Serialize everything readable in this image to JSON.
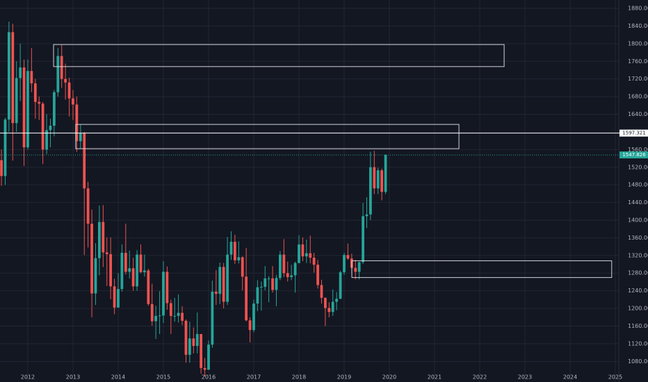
{
  "chart_data": {
    "type": "candlestick",
    "up_color": "#26a69a",
    "down_color": "#ef5350",
    "grid": true,
    "xlim": [
      2011.385,
      2025.077
    ],
    "ylim": [
      1033.3,
      1898.9
    ],
    "xticks": [
      2012,
      2013,
      2014,
      2015,
      2016,
      2017,
      2018,
      2019,
      2020,
      2021,
      2022,
      2023,
      2024,
      2025
    ],
    "yticks": [
      {
        "value": 1080,
        "label": "1080.000"
      },
      {
        "value": 1120,
        "label": "1120.000"
      },
      {
        "value": 1160,
        "label": "1160.000"
      },
      {
        "value": 1200,
        "label": "1200.000"
      },
      {
        "value": 1240,
        "label": "1240.000"
      },
      {
        "value": 1280,
        "label": "1280.000"
      },
      {
        "value": 1320,
        "label": "1320.000"
      },
      {
        "value": 1360,
        "label": "1360.000"
      },
      {
        "value": 1400,
        "label": "1400.000"
      },
      {
        "value": 1440,
        "label": "1440.000"
      },
      {
        "value": 1480,
        "label": "1480.000"
      },
      {
        "value": 1520,
        "label": "1520.000"
      },
      {
        "value": 1560,
        "label": "1560.000"
      },
      {
        "value": 1600,
        "label": "1600.000"
      },
      {
        "value": 1640,
        "label": "1640.000"
      },
      {
        "value": 1680,
        "label": "1680.000"
      },
      {
        "value": 1720,
        "label": "1720.000"
      },
      {
        "value": 1760,
        "label": "1760.000"
      },
      {
        "value": 1800,
        "label": "1800.000"
      },
      {
        "value": 1840,
        "label": "1840.000"
      },
      {
        "value": 1880,
        "label": "1880.000"
      }
    ],
    "x": [
      2011.417,
      2011.5,
      2011.583,
      2011.667,
      2011.75,
      2011.833,
      2011.917,
      2012.0,
      2012.083,
      2012.167,
      2012.25,
      2012.333,
      2012.417,
      2012.5,
      2012.583,
      2012.667,
      2012.75,
      2012.833,
      2012.917,
      2013.0,
      2013.083,
      2013.167,
      2013.25,
      2013.333,
      2013.417,
      2013.5,
      2013.583,
      2013.667,
      2013.75,
      2013.833,
      2013.917,
      2014.0,
      2014.083,
      2014.167,
      2014.25,
      2014.333,
      2014.417,
      2014.5,
      2014.583,
      2014.667,
      2014.75,
      2014.833,
      2014.917,
      2015.0,
      2015.083,
      2015.167,
      2015.25,
      2015.333,
      2015.417,
      2015.5,
      2015.583,
      2015.667,
      2015.75,
      2015.833,
      2015.917,
      2016.0,
      2016.083,
      2016.167,
      2016.25,
      2016.333,
      2016.417,
      2016.5,
      2016.583,
      2016.667,
      2016.75,
      2016.833,
      2016.917,
      2017.0,
      2017.083,
      2017.167,
      2017.25,
      2017.333,
      2017.417,
      2017.5,
      2017.583,
      2017.667,
      2017.75,
      2017.833,
      2017.917,
      2018.0,
      2018.083,
      2018.167,
      2018.25,
      2018.333,
      2018.417,
      2018.5,
      2018.583,
      2018.667,
      2018.75,
      2018.833,
      2018.917,
      2019.0,
      2019.083,
      2019.167,
      2019.25,
      2019.333,
      2019.417,
      2019.5,
      2019.583,
      2019.667,
      2019.75,
      2019.833,
      2019.917
    ],
    "open": [
      1536,
      1500,
      1628,
      1826,
      1620,
      1722,
      1746,
      1565,
      1738,
      1710,
      1668,
      1664,
      1560,
      1604,
      1614,
      1690,
      1772,
      1720,
      1712,
      1676,
      1662,
      1579,
      1597,
      1472,
      1392,
      1234,
      1314,
      1396,
      1327,
      1323,
      1250,
      1202,
      1244,
      1326,
      1283,
      1291,
      1250,
      1322,
      1282,
      1286,
      1210,
      1171,
      1183,
      1184,
      1283,
      1212,
      1183,
      1183,
      1190,
      1172,
      1095,
      1132,
      1115,
      1142,
      1065,
      1061,
      1118,
      1238,
      1233,
      1294,
      1215,
      1322,
      1351,
      1309,
      1316,
      1272,
      1173,
      1151,
      1211,
      1248,
      1249,
      1268,
      1268,
      1242,
      1269,
      1322,
      1280,
      1271,
      1275,
      1303,
      1345,
      1318,
      1325,
      1315,
      1299,
      1253,
      1224,
      1201,
      1192,
      1215,
      1222,
      1282,
      1321,
      1313,
      1292,
      1283,
      1305,
      1409,
      1413,
      1520,
      1472,
      1513,
      1464
    ],
    "high": [
      1560,
      1632,
      1850,
      1845,
      1760,
      1800,
      1764,
      1764,
      1790,
      1720,
      1680,
      1668,
      1640,
      1630,
      1695,
      1790,
      1797,
      1755,
      1723,
      1695,
      1680,
      1616,
      1600,
      1487,
      1424,
      1348,
      1433,
      1434,
      1361,
      1361,
      1267,
      1280,
      1345,
      1392,
      1331,
      1315,
      1332,
      1345,
      1322,
      1290,
      1256,
      1206,
      1239,
      1307,
      1295,
      1220,
      1224,
      1232,
      1205,
      1175,
      1170,
      1157,
      1191,
      1142,
      1088,
      1127,
      1263,
      1287,
      1304,
      1303,
      1362,
      1375,
      1367,
      1352,
      1318,
      1337,
      1180,
      1220,
      1264,
      1261,
      1296,
      1273,
      1296,
      1276,
      1330,
      1357,
      1306,
      1299,
      1306,
      1366,
      1361,
      1356,
      1365,
      1326,
      1310,
      1265,
      1225,
      1214,
      1243,
      1237,
      1285,
      1326,
      1347,
      1324,
      1310,
      1306,
      1439,
      1452,
      1555,
      1557,
      1519,
      1517,
      1549
    ],
    "low": [
      1478,
      1480,
      1600,
      1535,
      1600,
      1670,
      1523,
      1560,
      1690,
      1630,
      1627,
      1527,
      1550,
      1565,
      1590,
      1680,
      1700,
      1673,
      1635,
      1627,
      1555,
      1562,
      1321,
      1338,
      1180,
      1208,
      1275,
      1294,
      1251,
      1221,
      1187,
      1202,
      1238,
      1277,
      1268,
      1240,
      1240,
      1280,
      1272,
      1206,
      1161,
      1131,
      1142,
      1167,
      1197,
      1142,
      1170,
      1168,
      1162,
      1077,
      1077,
      1098,
      1098,
      1052,
      1046,
      1061,
      1111,
      1208,
      1210,
      1200,
      1208,
      1310,
      1301,
      1302,
      1241,
      1171,
      1123,
      1146,
      1194,
      1195,
      1241,
      1214,
      1236,
      1205,
      1264,
      1271,
      1261,
      1264,
      1236,
      1302,
      1307,
      1303,
      1302,
      1281,
      1245,
      1211,
      1160,
      1180,
      1183,
      1196,
      1221,
      1276,
      1310,
      1280,
      1266,
      1266,
      1301,
      1382,
      1400,
      1459,
      1459,
      1445,
      1459
    ],
    "close": [
      1500,
      1628,
      1826,
      1620,
      1722,
      1746,
      1565,
      1738,
      1710,
      1668,
      1664,
      1560,
      1604,
      1614,
      1690,
      1772,
      1720,
      1712,
      1676,
      1662,
      1579,
      1597,
      1472,
      1392,
      1234,
      1314,
      1396,
      1327,
      1323,
      1250,
      1202,
      1244,
      1326,
      1283,
      1291,
      1250,
      1322,
      1282,
      1286,
      1210,
      1171,
      1183,
      1184,
      1283,
      1212,
      1183,
      1183,
      1190,
      1172,
      1095,
      1132,
      1115,
      1142,
      1065,
      1061,
      1118,
      1238,
      1233,
      1294,
      1215,
      1322,
      1351,
      1309,
      1316,
      1272,
      1173,
      1151,
      1211,
      1248,
      1249,
      1268,
      1268,
      1242,
      1269,
      1322,
      1280,
      1271,
      1275,
      1303,
      1345,
      1318,
      1325,
      1315,
      1299,
      1253,
      1224,
      1201,
      1192,
      1215,
      1222,
      1282,
      1321,
      1313,
      1292,
      1283,
      1305,
      1409,
      1413,
      1520,
      1472,
      1513,
      1464,
      1547.826
    ],
    "zones": [
      {
        "x": [
          2012.57,
          2022.54
        ],
        "y": [
          1748,
          1798
        ]
      },
      {
        "x": [
          2013.06,
          2021.54
        ],
        "y": [
          1562,
          1617
        ]
      },
      {
        "x": [
          2019.17,
          2024.92
        ],
        "y": [
          1270,
          1308
        ]
      }
    ],
    "price_lines": [
      {
        "value": 1597.321,
        "color": "#ffffff"
      },
      {
        "value": 1547.826,
        "color": "#26a69a"
      }
    ]
  }
}
